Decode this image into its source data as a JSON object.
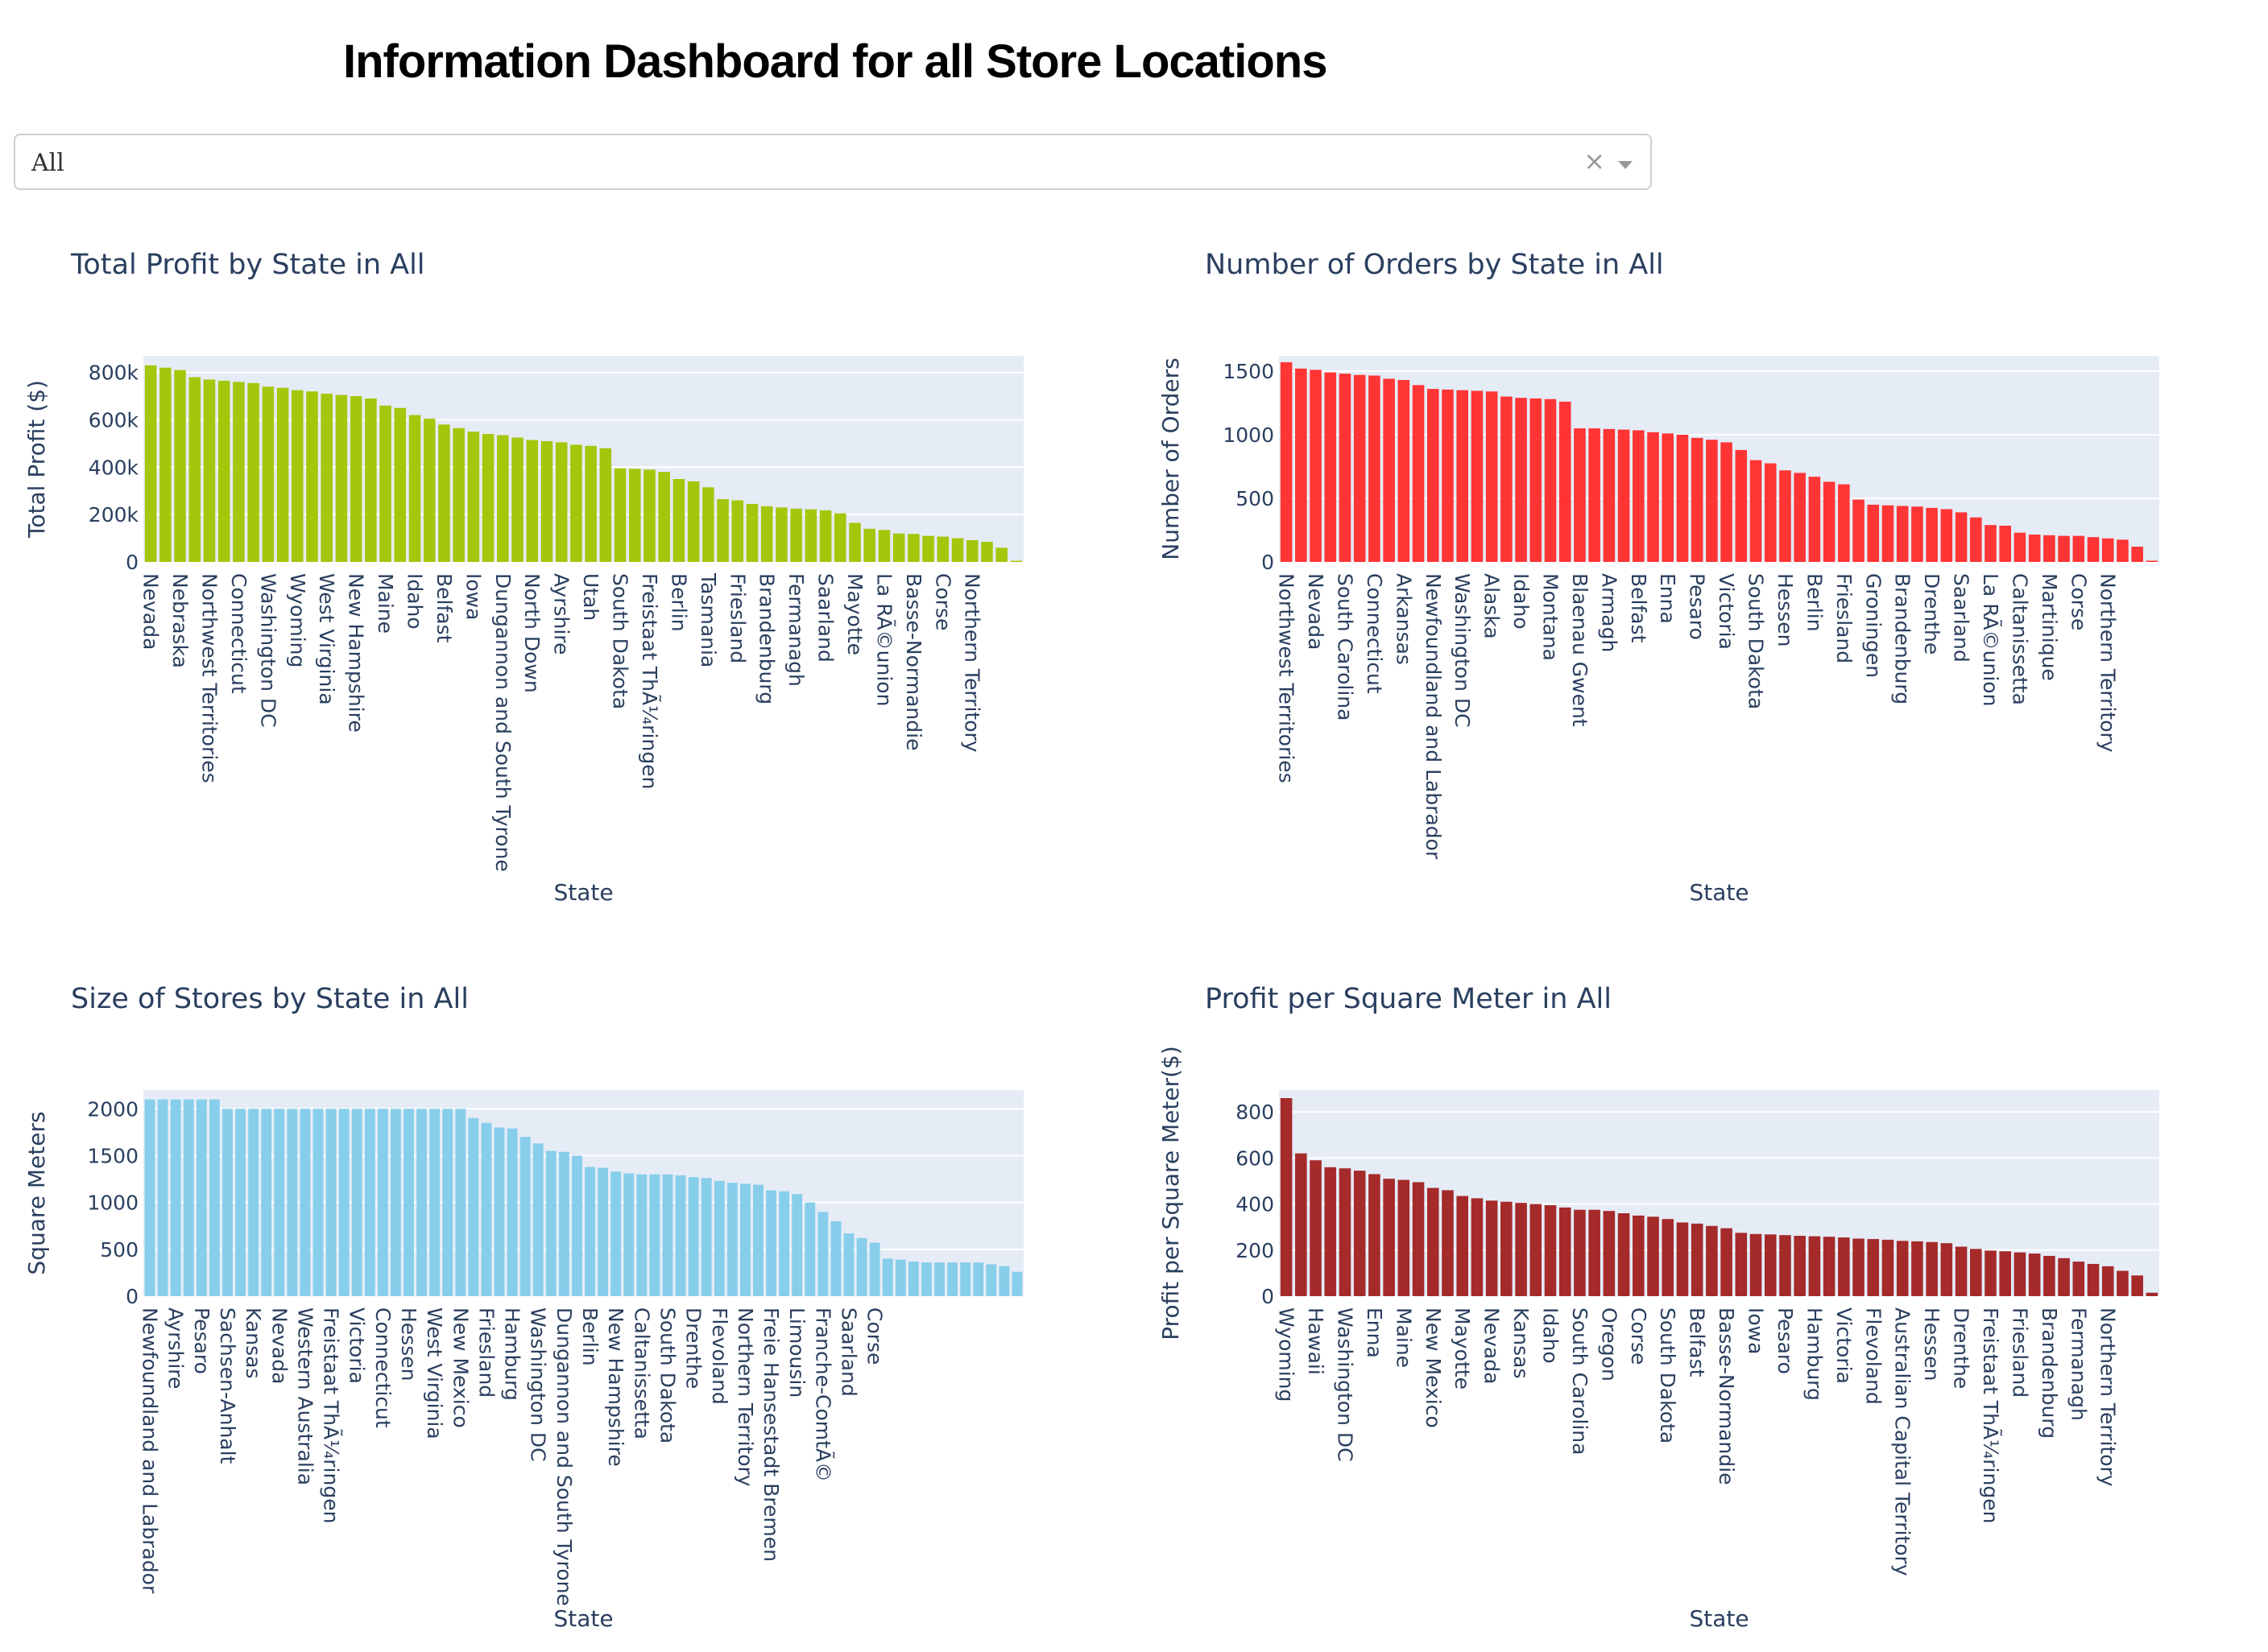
{
  "page": {
    "title": "Information Dashboard for all Store Locations"
  },
  "filter": {
    "selected": "All",
    "clear_glyph": "×"
  },
  "chart_data": [
    {
      "type": "bar",
      "title": "Total Profit by State in All",
      "xlabel": "State",
      "ylabel": "Total Profit ($)",
      "color": "#a3c70b",
      "ylim": [
        0,
        870000
      ],
      "yticks": [
        0,
        200000,
        400000,
        600000,
        800000
      ],
      "ytick_labels": [
        "0",
        "200k",
        "400k",
        "600k",
        "800k"
      ],
      "grid": true,
      "tick_labels": [
        "Nevada",
        "Nebraska",
        "Northwest Territories",
        "Connecticut",
        "Washington DC",
        "Wyoming",
        "West Virginia",
        "New Hampshire",
        "Maine",
        "Idaho",
        "Belfast",
        "Iowa",
        "Dungannon and South Tyrone",
        "North Down",
        "Ayrshire",
        "Utah",
        "South Dakota",
        "Freistaat ThÃ¼ringen",
        "Berlin",
        "Tasmania",
        "Friesland",
        "Brandenburg",
        "Fermanagh",
        "Saarland",
        "Mayotte",
        "La RÃ©union",
        "Basse-Normandie",
        "Corse",
        "Northern Territory"
      ],
      "values": [
        830000,
        820000,
        810000,
        780000,
        770000,
        765000,
        760000,
        755000,
        740000,
        735000,
        725000,
        720000,
        710000,
        705000,
        700000,
        690000,
        660000,
        650000,
        620000,
        605000,
        580000,
        565000,
        550000,
        540000,
        535000,
        525000,
        515000,
        510000,
        505000,
        495000,
        490000,
        480000,
        395000,
        393000,
        390000,
        380000,
        350000,
        340000,
        315000,
        265000,
        260000,
        245000,
        235000,
        230000,
        225000,
        222000,
        218000,
        205000,
        165000,
        140000,
        135000,
        120000,
        118000,
        110000,
        107000,
        100000,
        92000,
        85000,
        60000,
        5000
      ]
    },
    {
      "type": "bar",
      "title": "Number of Orders by State in All",
      "xlabel": "State",
      "ylabel": "Number of Orders",
      "color": "#ff3535",
      "ylim": [
        0,
        1620
      ],
      "yticks": [
        0,
        500,
        1000,
        1500
      ],
      "ytick_labels": [
        "0",
        "500",
        "1000",
        "1500"
      ],
      "grid": true,
      "tick_labels": [
        "Northwest Territories",
        "Nevada",
        "South Carolina",
        "Connecticut",
        "Arkansas",
        "Newfoundland and Labrador",
        "Washington DC",
        "Alaska",
        "Idaho",
        "Montana",
        "Blaenau Gwent",
        "Armagh",
        "Belfast",
        "Enna",
        "Pesaro",
        "Victoria",
        "South Dakota",
        "Hessen",
        "Berlin",
        "Friesland",
        "Groningen",
        "Brandenburg",
        "Drenthe",
        "Saarland",
        "La RÃ©union",
        "Caltanissetta",
        "Martinique",
        "Corse",
        "Northern Territory"
      ],
      "values": [
        1570,
        1520,
        1510,
        1490,
        1480,
        1470,
        1465,
        1440,
        1430,
        1390,
        1360,
        1355,
        1350,
        1345,
        1340,
        1300,
        1290,
        1285,
        1280,
        1260,
        1050,
        1050,
        1045,
        1040,
        1035,
        1020,
        1010,
        1000,
        975,
        960,
        940,
        880,
        800,
        775,
        720,
        700,
        670,
        630,
        610,
        490,
        450,
        445,
        440,
        435,
        425,
        415,
        390,
        350,
        290,
        285,
        230,
        215,
        210,
        205,
        205,
        195,
        185,
        175,
        120,
        10
      ]
    },
    {
      "type": "bar",
      "title": "Size of Stores by State in All",
      "xlabel": "State",
      "ylabel": "Square Meters",
      "color": "#87ceeb",
      "ylim": [
        0,
        2200
      ],
      "yticks": [
        0,
        500,
        1000,
        1500,
        2000
      ],
      "ytick_labels": [
        "0",
        "500",
        "1000",
        "1500",
        "2000"
      ],
      "grid": true,
      "tick_labels": [
        "Newfoundland and Labrador",
        "Ayrshire",
        "Pesaro",
        "Sachsen-Anhalt",
        "Kansas",
        "Nevada",
        "Western Australia",
        "Freistaat ThÃ¼ringen",
        "Victoria",
        "Connecticut",
        "Hessen",
        "West Virginia",
        "New Mexico",
        "Friesland",
        "Hamburg",
        "Washington DC",
        "Dungannon and South Tyrone",
        "Berlin",
        "New Hampshire",
        "Caltanissetta",
        "South Dakota",
        "Drenthe",
        "Flevoland",
        "Northern Territory",
        "Freie Hansestadt Bremen",
        "Limousin",
        "Franche-ComtÃ©",
        "Saarland",
        "Corse"
      ],
      "values": [
        2100,
        2100,
        2100,
        2100,
        2100,
        2100,
        2000,
        2000,
        2000,
        2000,
        2000,
        2000,
        2000,
        2000,
        2000,
        2000,
        2000,
        2000,
        2000,
        2000,
        2000,
        2000,
        2000,
        2000,
        2000,
        1900,
        1850,
        1800,
        1790,
        1700,
        1630,
        1550,
        1540,
        1500,
        1380,
        1370,
        1330,
        1310,
        1300,
        1300,
        1300,
        1290,
        1270,
        1260,
        1230,
        1210,
        1200,
        1190,
        1130,
        1120,
        1090,
        1000,
        900,
        800,
        670,
        620,
        570,
        400,
        390,
        370,
        360,
        360,
        360,
        360,
        360,
        340,
        320,
        260
      ]
    },
    {
      "type": "bar",
      "title": "Profit per Square Meter in All",
      "xlabel": "State",
      "ylabel": "Profit per Square Meter($)",
      "color": "#a52a2a",
      "ylim": [
        0,
        895
      ],
      "yticks": [
        0,
        200,
        400,
        600,
        800
      ],
      "ytick_labels": [
        "0",
        "200",
        "400",
        "600",
        "800"
      ],
      "grid": true,
      "tick_labels": [
        "Wyoming",
        "Hawaii",
        "Washington DC",
        "Enna",
        "Maine",
        "New Mexico",
        "Mayotte",
        "Nevada",
        "Kansas",
        "Idaho",
        "South Carolina",
        "Oregon",
        "Corse",
        "South Dakota",
        "Belfast",
        "Basse-Normandie",
        "Iowa",
        "Pesaro",
        "Hamburg",
        "Victoria",
        "Flevoland",
        "Australian Capital Territory",
        "Hessen",
        "Drenthe",
        "Freistaat ThÃ¼ringen",
        "Friesland",
        "Brandenburg",
        "Fermanagh",
        "Northern Territory"
      ],
      "values": [
        860,
        620,
        590,
        560,
        555,
        545,
        530,
        510,
        505,
        495,
        470,
        460,
        435,
        425,
        415,
        410,
        405,
        400,
        395,
        385,
        375,
        375,
        370,
        360,
        350,
        345,
        335,
        320,
        315,
        305,
        295,
        275,
        270,
        268,
        265,
        262,
        260,
        258,
        255,
        250,
        248,
        245,
        240,
        238,
        235,
        230,
        215,
        205,
        198,
        195,
        190,
        185,
        175,
        165,
        150,
        140,
        130,
        110,
        90,
        15
      ]
    }
  ]
}
